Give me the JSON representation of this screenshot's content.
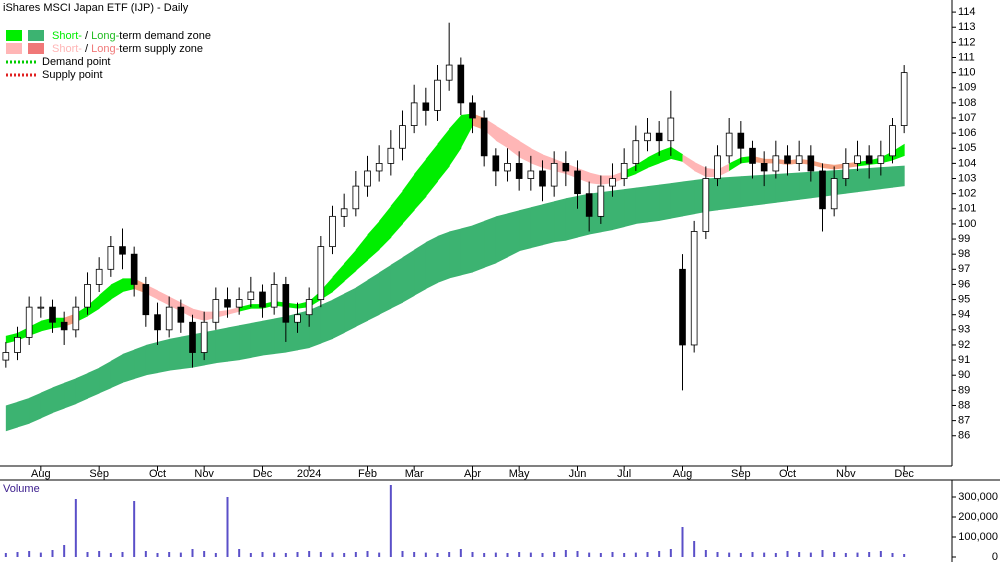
{
  "chart_data": [
    {
      "type": "candlestick",
      "title": "iShares MSCI Japan ETF (IJP) - Daily",
      "legend": [
        {
          "parts": [
            "Short-",
            " / ",
            "Long-",
            "term demand zone"
          ],
          "colors": [
            "#00ee00",
            "#3cb371"
          ]
        },
        {
          "parts": [
            "Short-",
            " / ",
            "Long-",
            "term supply zone"
          ],
          "colors": [
            "#ffb6b6",
            "#f07878"
          ]
        },
        {
          "parts": [
            "Demand point"
          ],
          "colors": [
            "#00cc00"
          ]
        },
        {
          "parts": [
            "Supply point"
          ],
          "colors": [
            "#e02020"
          ]
        }
      ],
      "xlim": [
        -0.5,
        77.5
      ],
      "xticks": [
        {
          "value": 3,
          "label": "Aug"
        },
        {
          "value": 8,
          "label": "Sep"
        },
        {
          "value": 13,
          "label": "Oct"
        },
        {
          "value": 17,
          "label": "Nov"
        },
        {
          "value": 22,
          "label": "Dec"
        },
        {
          "value": 26,
          "label": "2024"
        },
        {
          "value": 31,
          "label": "Feb"
        },
        {
          "value": 35,
          "label": "Mar"
        },
        {
          "value": 40,
          "label": "Apr"
        },
        {
          "value": 44,
          "label": "May"
        },
        {
          "value": 49,
          "label": "Jun"
        },
        {
          "value": 53,
          "label": "Jul"
        },
        {
          "value": 58,
          "label": "Aug"
        },
        {
          "value": 63,
          "label": "Sep"
        },
        {
          "value": 67,
          "label": "Oct"
        },
        {
          "value": 72,
          "label": "Nov"
        },
        {
          "value": 77,
          "label": "Dec"
        }
      ],
      "ylim": [
        84,
        114.8
      ],
      "yticks": [
        86,
        87,
        88,
        89,
        90,
        91,
        92,
        93,
        94,
        95,
        96,
        97,
        98,
        99,
        100,
        101,
        102,
        103,
        104,
        105,
        106,
        107,
        108,
        109,
        110,
        111,
        112,
        113,
        114
      ],
      "open": [
        91,
        91.5,
        92.5,
        94.5,
        94.5,
        93.5,
        93,
        94.5,
        96,
        97,
        98.5,
        98,
        96,
        94,
        93,
        94.5,
        93.5,
        91.5,
        93.5,
        95,
        94.5,
        95,
        95.5,
        94.5,
        96,
        93.5,
        94,
        95,
        98.5,
        100.5,
        101,
        102.5,
        103.5,
        104,
        105,
        106.5,
        108,
        107.5,
        109.5,
        110.5,
        108,
        107,
        104.5,
        103.5,
        104,
        103,
        103.5,
        102.5,
        104,
        103.5,
        102,
        100.5,
        102.5,
        103,
        104,
        105.5,
        106,
        105.5,
        97,
        92,
        99.5,
        103,
        104.5,
        106,
        105,
        104,
        103.5,
        104.5,
        104,
        104.5,
        103.5,
        101,
        103,
        104,
        104.5,
        104,
        104.5,
        106.5
      ],
      "high": [
        92.2,
        93.2,
        95.2,
        95.2,
        95,
        94.2,
        95.2,
        96.8,
        97.8,
        99.2,
        99.7,
        98.5,
        96.5,
        94.8,
        95.2,
        95,
        94,
        94.2,
        95.8,
        95.8,
        95.8,
        96.5,
        96,
        96.8,
        96.5,
        94.8,
        95.8,
        99.2,
        101.2,
        102,
        103.5,
        104.5,
        105.2,
        106.2,
        107.5,
        109.2,
        109,
        110.5,
        113.3,
        111,
        108.5,
        107.5,
        105,
        105,
        104.8,
        104.5,
        104.2,
        104.8,
        104.8,
        104.2,
        102.8,
        103.2,
        104,
        105,
        106.5,
        107,
        106.8,
        108.8,
        98,
        100.2,
        103.8,
        105.2,
        107,
        106.8,
        105.5,
        104.8,
        105.5,
        105.2,
        105.5,
        105.2,
        104,
        103.8,
        105,
        105.5,
        105.2,
        105.5,
        107,
        110.5
      ],
      "low": [
        90.5,
        91,
        92,
        93.8,
        92.8,
        92,
        92.5,
        94,
        95.5,
        96.5,
        97,
        95.2,
        93.2,
        92,
        92.5,
        92.8,
        90.5,
        91,
        93,
        93.8,
        94,
        94.5,
        93.8,
        94,
        92.2,
        92.8,
        93.2,
        94.5,
        98,
        99.8,
        100.5,
        101.8,
        102.8,
        103.2,
        104.2,
        106,
        106.5,
        106.8,
        108.8,
        107.2,
        106,
        103.8,
        102.5,
        102.8,
        102.2,
        102.2,
        101.5,
        101.8,
        102.5,
        101,
        99.5,
        100,
        101.8,
        102.5,
        103.5,
        104.8,
        104.5,
        104.5,
        89,
        91.5,
        99,
        102.5,
        104,
        104,
        103,
        102.5,
        103,
        103.2,
        103.5,
        102.8,
        99.5,
        100.5,
        102.5,
        103.5,
        103,
        103.2,
        104,
        106
      ],
      "close": [
        91.5,
        92.5,
        94.5,
        94.5,
        93.5,
        93,
        94.5,
        96,
        97,
        98.5,
        98,
        96,
        94,
        93,
        94.5,
        93.5,
        91.5,
        93.5,
        95,
        94.5,
        95,
        95.5,
        94.5,
        96,
        93.5,
        94,
        95,
        98.5,
        100.5,
        101,
        102.5,
        103.5,
        104,
        105,
        106.5,
        108,
        107.5,
        109.5,
        110.5,
        108,
        107,
        104.5,
        103.5,
        104,
        103,
        103.5,
        102.5,
        104,
        103.5,
        102,
        100.5,
        102.5,
        103,
        104,
        105.5,
        106,
        105.5,
        107,
        92,
        99.5,
        103,
        104.5,
        106,
        105,
        104,
        103.5,
        104.5,
        104,
        104.5,
        103.5,
        101,
        103,
        104,
        104.5,
        104,
        104.5,
        106.5,
        110
      ],
      "long_zone": {
        "color": "#3cb371",
        "upper": [
          88,
          88.25,
          88.5,
          88.85,
          89.2,
          89.5,
          89.8,
          90.15,
          90.5,
          90.95,
          91.4,
          91.7,
          92,
          92.2,
          92.4,
          92.55,
          92.7,
          92.85,
          93,
          93.15,
          93.3,
          93.45,
          93.6,
          93.75,
          93.9,
          94.1,
          94.3,
          94.65,
          95,
          95.4,
          95.8,
          96.3,
          96.8,
          97.3,
          97.8,
          98.3,
          98.8,
          99.2,
          99.5,
          99.7,
          99.9,
          100.2,
          100.5,
          100.7,
          100.9,
          101.1,
          101.3,
          101.5,
          101.7,
          101.85,
          102,
          102.1,
          102.2,
          102.3,
          102.4,
          102.5,
          102.6,
          102.7,
          102.8,
          102.9,
          103,
          103.05,
          103.1,
          103.15,
          103.2,
          103.25,
          103.3,
          103.35,
          103.4,
          103.45,
          103.5,
          103.55,
          103.6,
          103.65,
          103.7,
          103.75,
          103.8,
          103.85
        ],
        "lower": [
          86.3,
          86.55,
          86.8,
          87.15,
          87.5,
          87.8,
          88.1,
          88.45,
          88.8,
          89.15,
          89.5,
          89.75,
          90,
          90.15,
          90.3,
          90.4,
          90.5,
          90.65,
          90.8,
          90.9,
          91,
          91.15,
          91.3,
          91.4,
          91.5,
          91.65,
          91.8,
          92.1,
          92.4,
          92.8,
          93.2,
          93.6,
          94,
          94.4,
          94.8,
          95.25,
          95.7,
          96.1,
          96.4,
          96.6,
          96.8,
          97.1,
          97.4,
          97.8,
          98.2,
          98.4,
          98.6,
          98.8,
          98.9,
          99.1,
          99.3,
          99.45,
          99.6,
          99.8,
          100,
          100.1,
          100.2,
          100.35,
          100.5,
          100.65,
          100.8,
          100.9,
          101,
          101.1,
          101.2,
          101.3,
          101.4,
          101.5,
          101.6,
          101.7,
          101.8,
          101.9,
          102,
          102.1,
          102.2,
          102.3,
          102.4,
          102.5
        ]
      },
      "short_zone": {
        "upper": [
          92.6,
          92.8,
          93.2,
          93.6,
          93.8,
          93.8,
          94.1,
          94.6,
          95.3,
          96,
          96.4,
          96.4,
          96,
          95.6,
          95.2,
          94.8,
          94.4,
          94.2,
          94.2,
          94.3,
          94.5,
          94.7,
          94.7,
          94.9,
          94.8,
          94.7,
          94.9,
          95.6,
          96.5,
          97.4,
          98.3,
          99.3,
          100.2,
          101.2,
          102.2,
          103.3,
          104.3,
          105.3,
          106.3,
          107.2,
          107.3,
          107,
          106.5,
          106,
          105.5,
          105,
          104.6,
          104.3,
          104,
          103.7,
          103.4,
          103.2,
          103.2,
          103.5,
          103.9,
          104.4,
          104.8,
          105.1,
          104.6,
          104.1,
          103.7,
          103.6,
          104,
          104.4,
          104.5,
          104.3,
          104.3,
          104.2,
          104.3,
          104.2,
          104,
          103.9,
          104,
          104.1,
          104.2,
          104.4,
          104.8,
          105.3
        ],
        "lower": [
          92.1,
          92.3,
          92.6,
          92.9,
          93.1,
          93.2,
          93.5,
          93.9,
          94.4,
          95,
          95.5,
          95.7,
          95.4,
          95,
          94.6,
          94.2,
          93.8,
          93.6,
          93.8,
          94,
          94.2,
          94.4,
          94.4,
          94.6,
          94.5,
          94.4,
          94.5,
          95,
          95.5,
          96.2,
          96.9,
          97.6,
          98.3,
          99.1,
          100,
          100.9,
          101.8,
          102.8,
          103.8,
          105,
          106.5,
          106.2,
          105.5,
          105,
          104.4,
          104,
          103.7,
          103.5,
          103.3,
          103,
          102.7,
          102.6,
          102.7,
          103,
          103.3,
          103.7,
          104,
          104.3,
          104.1,
          103.5,
          103.1,
          103.1,
          103.5,
          104,
          104.1,
          104,
          104,
          103.9,
          104,
          103.9,
          103.7,
          103.6,
          103.7,
          103.8,
          103.9,
          104,
          104.2,
          104.5
        ],
        "colors": [
          "#00ee00",
          "#00ee00",
          "#00ee00",
          "#00ee00",
          "#00ee00",
          "#f5a080",
          "#00ee00",
          "#00ee00",
          "#00ee00",
          "#00ee00",
          "#00ee00",
          "#f5a080",
          "#ffb6b6",
          "#ffb6b6",
          "#ffb6b6",
          "#ffb6b6",
          "#ffb6b6",
          "#ffb6b6",
          "#ffb6b6",
          "#ffb6b6",
          "#00ee00",
          "#00ee00",
          "#00ee00",
          "#00ee00",
          "#00ee00",
          "#00ee00",
          "#00ee00",
          "#00ee00",
          "#00ee00",
          "#00ee00",
          "#00ee00",
          "#00ee00",
          "#00ee00",
          "#00ee00",
          "#00ee00",
          "#00ee00",
          "#00ee00",
          "#00ee00",
          "#00ee00",
          "#00ee00",
          "#f5a080",
          "#ffb6b6",
          "#ffb6b6",
          "#ffb6b6",
          "#ffb6b6",
          "#ffb6b6",
          "#ffb6b6",
          "#ffb6b6",
          "#ffb6b6",
          "#ffb6b6",
          "#ffb6b6",
          "#ffb6b6",
          "#ffb6b6",
          "#00ee00",
          "#00ee00",
          "#00ee00",
          "#00ee00",
          "#00ee00",
          "#ffb6b6",
          "#ffb6b6",
          "#ffb6b6",
          "#ffb6b6",
          "#00ee00",
          "#00ee00",
          "#f5a080",
          "#f5a080",
          "#f5a080",
          "#f5a080",
          "#f5a080",
          "#f5a080",
          "#f5a080",
          "#f5a080",
          "#f5a080",
          "#00ee00",
          "#00ee00",
          "#00ee00",
          "#00ee00",
          "#00ee00"
        ]
      }
    },
    {
      "type": "bar",
      "title": "Volume",
      "color": "#5a4fc8",
      "values": [
        20000,
        25000,
        30000,
        22000,
        35000,
        60000,
        290000,
        25000,
        30000,
        20000,
        25000,
        280000,
        30000,
        20000,
        25000,
        22000,
        40000,
        30000,
        20000,
        300000,
        40000,
        20000,
        25000,
        22000,
        20000,
        25000,
        30000,
        25000,
        22000,
        20000,
        25000,
        30000,
        22000,
        360000,
        30000,
        25000,
        22000,
        20000,
        25000,
        40000,
        25000,
        20000,
        22000,
        20000,
        25000,
        22000,
        20000,
        25000,
        35000,
        30000,
        22000,
        20000,
        25000,
        20000,
        22000,
        25000,
        30000,
        40000,
        150000,
        80000,
        35000,
        25000,
        22000,
        20000,
        25000,
        22000,
        20000,
        30000,
        25000,
        22000,
        35000,
        25000,
        20000,
        22000,
        25000,
        30000,
        20000,
        15000
      ],
      "ylim": [
        0,
        385000
      ],
      "yticks": [
        0,
        {
          "value": 100000,
          "label": "100,000"
        },
        {
          "value": 200000,
          "label": "200,000"
        },
        {
          "value": 300000,
          "label": "300,000"
        }
      ]
    }
  ]
}
